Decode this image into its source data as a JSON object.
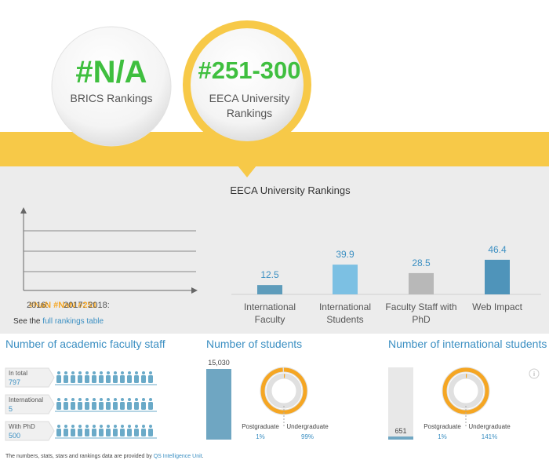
{
  "badges": [
    {
      "value": "#N/A",
      "label": "BRICS Rankings"
    },
    {
      "value": "#251-300",
      "label": "EECA University Rankings"
    }
  ],
  "history": {
    "entries": [
      {
        "year": "2016:",
        "rank": "#NaN"
      },
      {
        "year": "2017:",
        "rank": "#NaN"
      },
      {
        "year": "2018:",
        "rank": "#251"
      }
    ],
    "link_prefix": "See the",
    "link_text": "full rankings table"
  },
  "chart_data": {
    "type": "bar",
    "title": "EECA University Rankings",
    "categories": [
      "International Faculty",
      "International Students",
      "Faculty Staff with PhD",
      "Web Impact"
    ],
    "values": [
      12.5,
      39.9,
      28.5,
      46.4
    ],
    "colors": [
      "#5e9cbb",
      "#7cc0e3",
      "#b8b8b8",
      "#4f94ba"
    ]
  },
  "faculty": {
    "title": "Number of academic faculty staff",
    "rows": [
      {
        "label": "In total",
        "value": 797
      },
      {
        "label": "International",
        "value": 5
      },
      {
        "label": "With PhD",
        "value": 500
      }
    ]
  },
  "students": {
    "title": "Number of students",
    "values": [
      15030
    ],
    "value_labels": [
      "15,030"
    ],
    "breakdown": [
      {
        "name": "Postgraduate",
        "value": 1,
        "value_label": "1%"
      },
      {
        "name": "Undergraduate",
        "value": 99,
        "value_label": "99%"
      }
    ]
  },
  "international": {
    "title": "Number of international students",
    "values": [
      651
    ],
    "breakdown": [
      {
        "name": "Postgraduate",
        "value": 1,
        "value_label": "1%"
      },
      {
        "name": "Undergraduate",
        "value": 141,
        "value_label": "141%"
      }
    ]
  },
  "footer": {
    "text": "The numbers, stats, stars and rankings data are provided by",
    "link": "QS Intelligence Unit",
    "end": "."
  }
}
